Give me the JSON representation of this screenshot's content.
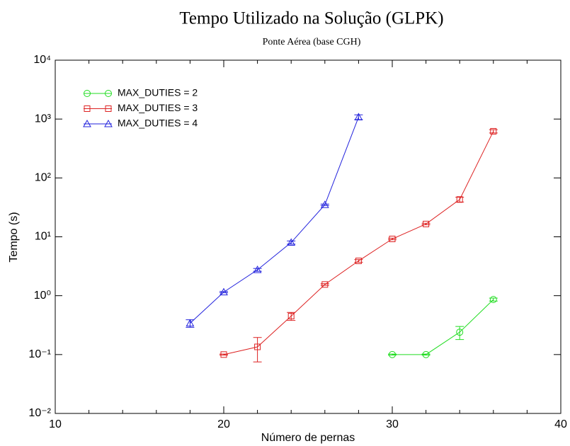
{
  "chart_data": {
    "type": "line",
    "title": "Tempo Utilizado na Solução (GLPK)",
    "subtitle": "Ponte Aérea (base CGH)",
    "xlabel": "Número de pernas",
    "ylabel": "Tempo (s)",
    "xlim": [
      10,
      40
    ],
    "xticks": [
      10,
      20,
      30,
      40
    ],
    "xminor_ticks": [
      12,
      14,
      16,
      18,
      22,
      24,
      26,
      28,
      32,
      34,
      36,
      38
    ],
    "ylim": [
      0.01,
      10000
    ],
    "yscale": "log",
    "yticks": [
      {
        "value": 0.01,
        "label": "10⁻²"
      },
      {
        "value": 0.1,
        "label": "10⁻¹"
      },
      {
        "value": 1,
        "label": "10⁰"
      },
      {
        "value": 10,
        "label": "10¹"
      },
      {
        "value": 100,
        "label": "10²"
      },
      {
        "value": 1000,
        "label": "10³"
      },
      {
        "value": 10000,
        "label": "10⁴"
      }
    ],
    "legend": "upper left",
    "series": [
      {
        "name": "MAX_DUTIES = 2",
        "color": "#22dd22",
        "marker": "circle",
        "x": [
          30,
          32,
          34,
          36
        ],
        "values": [
          0.1,
          0.1,
          0.24,
          0.86
        ],
        "errors": [
          0.002,
          0.002,
          0.06,
          0.05
        ]
      },
      {
        "name": "MAX_DUTIES = 3",
        "color": "#dd2222",
        "marker": "square",
        "x": [
          20,
          22,
          24,
          26,
          28,
          30,
          32,
          34,
          36
        ],
        "values": [
          0.1,
          0.135,
          0.45,
          1.55,
          3.9,
          9.2,
          16.5,
          43,
          620
        ],
        "errors": [
          0.002,
          0.06,
          0.07,
          0.05,
          0.2,
          0.3,
          0.5,
          4,
          40
        ]
      },
      {
        "name": "MAX_DUTIES = 4",
        "color": "#2222dd",
        "marker": "triangle",
        "x": [
          18,
          20,
          22,
          24,
          26,
          28
        ],
        "values": [
          0.34,
          1.15,
          2.75,
          8,
          35,
          1080
        ],
        "errors": [
          0.05,
          0.03,
          0.15,
          0.5,
          1,
          100
        ]
      }
    ]
  }
}
